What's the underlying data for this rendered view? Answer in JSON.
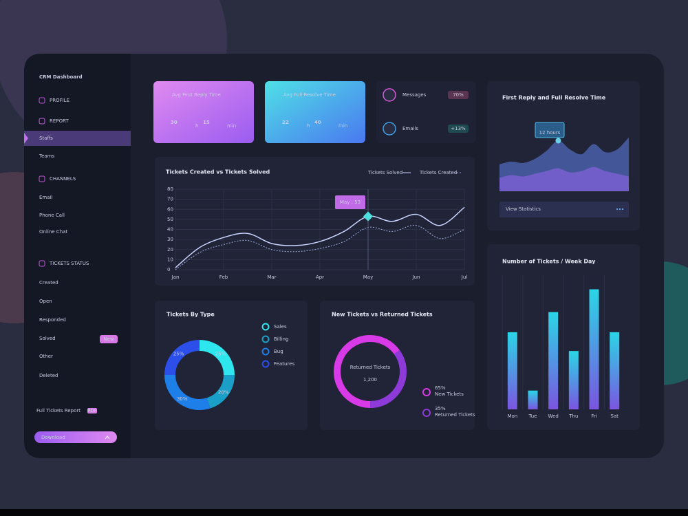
{
  "sidebar": {
    "title": "CRM Dashboard",
    "sections": [
      {
        "heading": "PROFILE",
        "items": []
      },
      {
        "heading": "REPORT",
        "items": [
          "Staffs",
          "Teams"
        ]
      },
      {
        "heading": "CHANNELS",
        "items": [
          "Email",
          "Phone Call",
          "Online Chat"
        ]
      },
      {
        "heading": "TICKETS STATUS",
        "items": [
          "Created",
          "Open",
          "Responded",
          "Solved",
          "Other",
          "Deleted"
        ]
      }
    ],
    "badge": "New",
    "report": "Full Tickets Report",
    "report_badge": "PDF",
    "button": "Download"
  },
  "kpis": [
    {
      "label": "Avg First Reply Time",
      "hours": "30",
      "hours_unit": "h",
      "minutes": "15",
      "minutes_unit": "min"
    },
    {
      "label": "Avg Full Resolve Time",
      "hours": "22",
      "hours_unit": "h",
      "minutes": "40",
      "minutes_unit": "min"
    }
  ],
  "channels": [
    {
      "name": "Messages",
      "badge": "70%"
    },
    {
      "name": "Emails",
      "badge": "+13%"
    }
  ],
  "chart_data": [
    {
      "type": "line",
      "title": "Tickets Created vs Tickets Solved",
      "categories": [
        "Jan",
        null,
        "Feb",
        null,
        "Mar",
        null,
        "Apr",
        null,
        "May",
        null,
        "Jun",
        null,
        "Jul"
      ],
      "series": [
        {
          "name": "Tickets Solved",
          "color": "#c9d3ff",
          "values": [
            2,
            22,
            32,
            36,
            26,
            24,
            28,
            38,
            53,
            48,
            55,
            44,
            62
          ]
        },
        {
          "name": "Tickets Created",
          "color": "#8f9ac8",
          "dashed": true,
          "values": [
            0,
            17,
            25,
            29,
            20,
            18,
            21,
            28,
            42,
            38,
            44,
            31,
            40
          ]
        }
      ],
      "ylim": [
        0,
        80
      ],
      "yticks": [
        0,
        10,
        20,
        30,
        40,
        50,
        60,
        70,
        80
      ],
      "grid": true,
      "annotation": "May : 53"
    },
    {
      "type": "area",
      "title": "First Reply and Full Resolve Time",
      "series": [
        {
          "color": "#4a5fa8",
          "values": [
            40,
            44,
            42,
            48,
            60,
            75,
            62,
            55,
            70,
            58,
            62,
            80
          ]
        },
        {
          "color": "#7a5fd0",
          "values": [
            20,
            24,
            22,
            26,
            30,
            34,
            28,
            30,
            36,
            30,
            26,
            22
          ]
        }
      ],
      "ylim": [
        0,
        100
      ],
      "annotation": "12 hours",
      "footer": "View Statistics"
    },
    {
      "type": "pie",
      "title": "Tickets By Type",
      "categories": [
        "Sales",
        "Billing",
        "Bug",
        "Features"
      ],
      "values": [
        25,
        20,
        30,
        25
      ],
      "value_labels": [
        "25%",
        "20%",
        "30%",
        "25%"
      ],
      "colors": [
        "#2ee6ee",
        "#1aa0c8",
        "#1e7fe8",
        "#2b4fe8"
      ]
    },
    {
      "type": "pie",
      "title": "New Tickets vs Returned Tickets",
      "categories": [
        "New Tickets",
        "Returned Tickets"
      ],
      "values": [
        65,
        35
      ],
      "value_labels": [
        "65%",
        "35%"
      ],
      "colors": [
        "#d93ae8",
        "#8e3ad8"
      ],
      "center_label": "Returned Tickets",
      "center_value": "1,200"
    },
    {
      "type": "bar",
      "title": "Number of Tickets / Week Day",
      "categories": [
        "Mon",
        "Tue",
        "Wed",
        "Thu",
        "Fri",
        "Sat"
      ],
      "values": [
        115,
        28,
        145,
        87,
        179,
        115
      ],
      "color": "#2ad6e6",
      "ylim": [
        0,
        200
      ],
      "grid": true
    }
  ]
}
